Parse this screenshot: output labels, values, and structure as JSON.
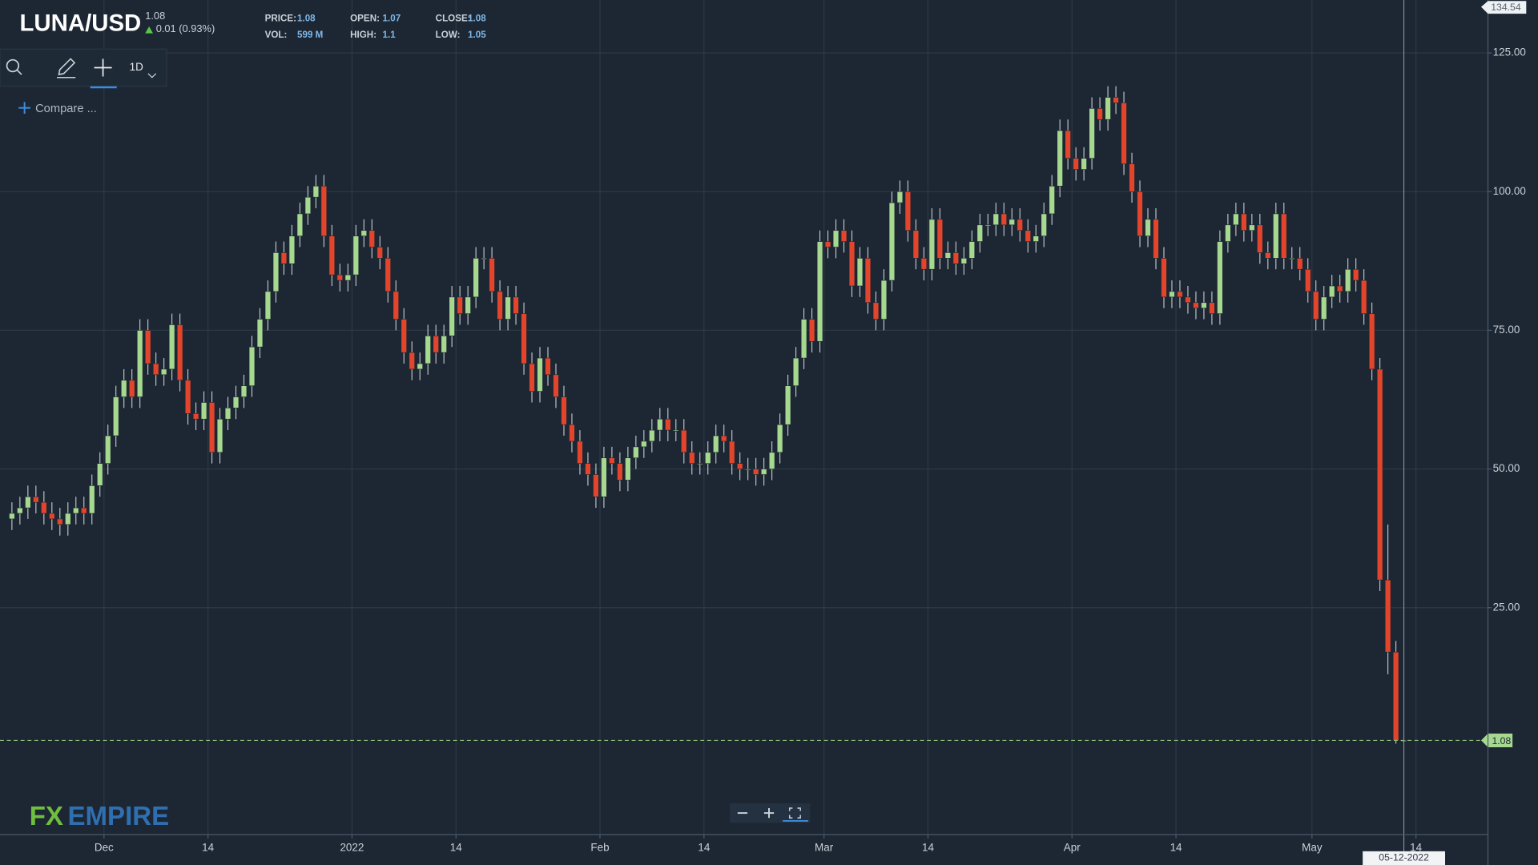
{
  "header": {
    "symbol": "LUNA/USD",
    "price": "1.08",
    "change": "0.01 (0.93%)",
    "stats": [
      {
        "label": "PRICE:",
        "value": "1.08"
      },
      {
        "label": "VOL:",
        "value": "599 M"
      },
      {
        "label": "OPEN:",
        "value": "1.07"
      },
      {
        "label": "HIGH:",
        "value": "1.1"
      },
      {
        "label": "CLOSE:",
        "value": "1.08"
      },
      {
        "label": "LOW:",
        "value": "1.05"
      }
    ]
  },
  "toolbar": {
    "interval": "1D",
    "compare": "Compare ..."
  },
  "logo": {
    "fx": "FX",
    "empire": "EMPIRE"
  },
  "chart_data": {
    "type": "candlestick",
    "crosshair_label": "05-12-2022",
    "up_color": "#a6d88f",
    "down_color": "#e2452b",
    "grid": true,
    "xlim": [
      "2021-11-18",
      "2022-05-23"
    ],
    "xticks": [
      {
        "value": "2021-12-01",
        "label": "Dec"
      },
      {
        "value": "2021-12-14",
        "label": "14"
      },
      {
        "value": "2022-01-01",
        "label": "2022"
      },
      {
        "value": "2022-01-14",
        "label": "14"
      },
      {
        "value": "2022-02-01",
        "label": "Feb"
      },
      {
        "value": "2022-02-14",
        "label": "14"
      },
      {
        "value": "2022-03-01",
        "label": "Mar"
      },
      {
        "value": "2022-03-14",
        "label": "14"
      },
      {
        "value": "2022-04-01",
        "label": "Apr"
      },
      {
        "value": "2022-04-14",
        "label": "14"
      },
      {
        "value": "2022-05-01",
        "label": "May"
      },
      {
        "value": "2022-05-14",
        "label": "14"
      }
    ],
    "ylim": [
      -15.9,
      134.54
    ],
    "yticks": [
      {
        "value": 25,
        "label": "25.00"
      },
      {
        "value": 50,
        "label": "50.00"
      },
      {
        "value": 75,
        "label": "75.00"
      },
      {
        "value": 100,
        "label": "100.00"
      },
      {
        "value": 125,
        "label": "125.00"
      }
    ],
    "x": [
      "2021-11-19",
      "2021-11-20",
      "2021-11-21",
      "2021-11-22",
      "2021-11-23",
      "2021-11-24",
      "2021-11-25",
      "2021-11-26",
      "2021-11-27",
      "2021-11-28",
      "2021-11-29",
      "2021-11-30",
      "2021-12-01",
      "2021-12-02",
      "2021-12-03",
      "2021-12-04",
      "2021-12-05",
      "2021-12-06",
      "2021-12-07",
      "2021-12-08",
      "2021-12-09",
      "2021-12-10",
      "2021-12-11",
      "2021-12-12",
      "2021-12-13",
      "2021-12-14",
      "2021-12-15",
      "2021-12-16",
      "2021-12-17",
      "2021-12-18",
      "2021-12-19",
      "2021-12-20",
      "2021-12-21",
      "2021-12-22",
      "2021-12-23",
      "2021-12-24",
      "2021-12-25",
      "2021-12-26",
      "2021-12-27",
      "2021-12-28",
      "2021-12-29",
      "2021-12-30",
      "2021-12-31",
      "2022-01-01",
      "2022-01-02",
      "2022-01-03",
      "2022-01-04",
      "2022-01-05",
      "2022-01-06",
      "2022-01-07",
      "2022-01-08",
      "2022-01-09",
      "2022-01-10",
      "2022-01-11",
      "2022-01-12",
      "2022-01-13",
      "2022-01-14",
      "2022-01-15",
      "2022-01-16",
      "2022-01-17",
      "2022-01-18",
      "2022-01-19",
      "2022-01-20",
      "2022-01-21",
      "2022-01-22",
      "2022-01-23",
      "2022-01-24",
      "2022-01-25",
      "2022-01-26",
      "2022-01-27",
      "2022-01-28",
      "2022-01-29",
      "2022-01-30",
      "2022-01-31",
      "2022-02-01",
      "2022-02-02",
      "2022-02-03",
      "2022-02-04",
      "2022-02-05",
      "2022-02-06",
      "2022-02-07",
      "2022-02-08",
      "2022-02-09",
      "2022-02-10",
      "2022-02-11",
      "2022-02-12",
      "2022-02-13",
      "2022-02-14",
      "2022-02-15",
      "2022-02-16",
      "2022-02-17",
      "2022-02-18",
      "2022-02-19",
      "2022-02-20",
      "2022-02-21",
      "2022-02-22",
      "2022-02-23",
      "2022-02-24",
      "2022-02-25",
      "2022-02-26",
      "2022-02-27",
      "2022-02-28",
      "2022-03-01",
      "2022-03-02",
      "2022-03-03",
      "2022-03-04",
      "2022-03-05",
      "2022-03-06",
      "2022-03-07",
      "2022-03-08",
      "2022-03-09",
      "2022-03-10",
      "2022-03-11",
      "2022-03-12",
      "2022-03-13",
      "2022-03-14",
      "2022-03-15",
      "2022-03-16",
      "2022-03-17",
      "2022-03-18",
      "2022-03-19",
      "2022-03-20",
      "2022-03-21",
      "2022-03-22",
      "2022-03-23",
      "2022-03-24",
      "2022-03-25",
      "2022-03-26",
      "2022-03-27",
      "2022-03-28",
      "2022-03-29",
      "2022-03-30",
      "2022-03-31",
      "2022-04-01",
      "2022-04-02",
      "2022-04-03",
      "2022-04-04",
      "2022-04-05",
      "2022-04-06",
      "2022-04-07",
      "2022-04-08",
      "2022-04-09",
      "2022-04-10",
      "2022-04-11",
      "2022-04-12",
      "2022-04-13",
      "2022-04-14",
      "2022-04-15",
      "2022-04-16",
      "2022-04-17",
      "2022-04-18",
      "2022-04-19",
      "2022-04-20",
      "2022-04-21",
      "2022-04-22",
      "2022-04-23",
      "2022-04-24",
      "2022-04-25",
      "2022-04-26",
      "2022-04-27",
      "2022-04-28",
      "2022-04-29",
      "2022-04-30",
      "2022-05-01",
      "2022-05-02",
      "2022-05-03",
      "2022-05-04",
      "2022-05-05",
      "2022-05-06",
      "2022-05-07",
      "2022-05-08",
      "2022-05-09",
      "2022-05-10",
      "2022-05-11",
      "2022-05-12"
    ],
    "open": [
      41,
      42,
      43,
      45,
      44,
      42,
      41,
      40,
      42,
      43,
      42,
      47,
      51,
      56,
      63,
      66,
      63,
      75,
      69,
      67,
      68,
      76,
      66,
      60,
      59,
      62,
      53,
      59,
      61,
      63,
      65,
      72,
      77,
      82,
      89,
      87,
      92,
      96,
      99,
      101,
      92,
      85,
      84,
      85,
      92,
      93,
      90,
      88,
      82,
      77,
      71,
      68,
      69,
      74,
      71,
      74,
      81,
      78,
      81,
      88,
      88,
      82,
      77,
      81,
      78,
      69,
      64,
      70,
      67,
      63,
      58,
      55,
      51,
      49,
      45,
      52,
      51,
      48,
      52,
      54,
      55,
      57,
      59,
      57,
      57,
      53,
      51,
      51,
      53,
      56,
      55,
      51,
      50,
      50,
      49,
      50,
      53,
      58,
      65,
      70,
      77,
      73,
      91,
      90,
      93,
      91,
      83,
      88,
      80,
      77,
      84,
      98,
      100,
      93,
      88,
      86,
      95,
      88,
      89,
      87,
      88,
      91,
      94,
      94,
      96,
      94,
      95,
      93,
      91,
      92,
      96,
      101,
      111,
      106,
      104,
      106,
      115,
      113,
      117,
      116,
      105,
      100,
      92,
      95,
      88,
      81,
      82,
      81,
      80,
      79,
      80,
      78,
      91,
      94,
      96,
      93,
      94,
      89,
      88,
      96,
      88,
      88,
      86,
      82,
      77,
      81,
      83,
      82,
      86,
      84,
      78,
      68,
      30,
      17,
      1.07
    ],
    "high": [
      44,
      45,
      47,
      47,
      46,
      44,
      43,
      44,
      45,
      45,
      49,
      53,
      58,
      65,
      68,
      68,
      77,
      77,
      71,
      70,
      78,
      78,
      68,
      62,
      64,
      64,
      61,
      63,
      65,
      67,
      74,
      79,
      84,
      91,
      91,
      94,
      98,
      101,
      103,
      103,
      94,
      87,
      87,
      94,
      95,
      95,
      92,
      90,
      84,
      79,
      73,
      71,
      76,
      76,
      76,
      83,
      83,
      83,
      90,
      90,
      90,
      84,
      83,
      83,
      80,
      71,
      72,
      72,
      69,
      65,
      60,
      57,
      53,
      51,
      54,
      54,
      53,
      54,
      56,
      57,
      59,
      61,
      61,
      59,
      59,
      55,
      53,
      55,
      58,
      58,
      57,
      53,
      52,
      52,
      52,
      55,
      60,
      67,
      72,
      79,
      79,
      93,
      93,
      95,
      95,
      93,
      90,
      90,
      82,
      86,
      100,
      102,
      102,
      95,
      90,
      97,
      97,
      91,
      91,
      90,
      93,
      96,
      96,
      98,
      98,
      97,
      97,
      95,
      94,
      98,
      103,
      113,
      113,
      108,
      108,
      117,
      117,
      119,
      119,
      118,
      107,
      102,
      97,
      97,
      90,
      84,
      84,
      83,
      82,
      82,
      82,
      93,
      96,
      98,
      98,
      96,
      96,
      91,
      98,
      98,
      90,
      90,
      88,
      84,
      83,
      85,
      85,
      88,
      88,
      86,
      80,
      70,
      40,
      19,
      1.1
    ],
    "low": [
      39,
      40,
      41,
      42,
      40,
      39,
      38,
      38,
      40,
      40,
      40,
      45,
      49,
      54,
      61,
      61,
      61,
      67,
      65,
      65,
      66,
      64,
      58,
      57,
      57,
      51,
      51,
      57,
      59,
      61,
      63,
      70,
      75,
      80,
      85,
      85,
      90,
      94,
      97,
      90,
      83,
      82,
      82,
      83,
      90,
      88,
      86,
      80,
      75,
      69,
      66,
      66,
      67,
      69,
      69,
      72,
      76,
      76,
      79,
      86,
      80,
      75,
      75,
      76,
      67,
      62,
      62,
      65,
      61,
      56,
      53,
      49,
      47,
      43,
      43,
      49,
      46,
      46,
      50,
      52,
      53,
      55,
      55,
      55,
      51,
      49,
      49,
      49,
      51,
      53,
      49,
      48,
      48,
      47,
      47,
      48,
      51,
      56,
      63,
      68,
      71,
      71,
      88,
      88,
      89,
      81,
      81,
      78,
      75,
      75,
      82,
      96,
      91,
      86,
      84,
      84,
      86,
      86,
      85,
      85,
      86,
      89,
      92,
      92,
      92,
      92,
      91,
      89,
      89,
      90,
      94,
      99,
      104,
      102,
      102,
      104,
      111,
      111,
      114,
      103,
      98,
      90,
      90,
      86,
      79,
      79,
      79,
      78,
      77,
      77,
      76,
      76,
      89,
      92,
      91,
      91,
      87,
      86,
      86,
      86,
      86,
      84,
      80,
      75,
      75,
      79,
      80,
      80,
      82,
      76,
      66,
      28,
      13,
      0.5,
      1.05
    ],
    "close": [
      42,
      43,
      45,
      44,
      42,
      41,
      40,
      42,
      43,
      42,
      47,
      51,
      56,
      63,
      66,
      63,
      75,
      69,
      67,
      68,
      76,
      66,
      60,
      59,
      62,
      53,
      59,
      61,
      63,
      65,
      72,
      77,
      82,
      89,
      87,
      92,
      96,
      99,
      101,
      92,
      85,
      84,
      85,
      92,
      93,
      90,
      88,
      82,
      77,
      71,
      68,
      69,
      74,
      71,
      74,
      81,
      78,
      81,
      88,
      88,
      82,
      77,
      81,
      78,
      69,
      64,
      70,
      67,
      63,
      58,
      55,
      51,
      49,
      45,
      52,
      51,
      48,
      52,
      54,
      55,
      57,
      59,
      57,
      57,
      53,
      51,
      51,
      53,
      56,
      55,
      51,
      50,
      50,
      49,
      50,
      53,
      58,
      65,
      70,
      77,
      73,
      91,
      90,
      93,
      91,
      83,
      88,
      80,
      77,
      84,
      98,
      100,
      93,
      88,
      86,
      95,
      88,
      89,
      87,
      88,
      91,
      94,
      94,
      96,
      94,
      95,
      93,
      91,
      92,
      96,
      101,
      111,
      106,
      104,
      106,
      115,
      113,
      117,
      116,
      105,
      100,
      92,
      95,
      88,
      81,
      82,
      81,
      80,
      79,
      80,
      78,
      91,
      94,
      96,
      93,
      94,
      89,
      88,
      96,
      88,
      88,
      86,
      82,
      77,
      81,
      83,
      82,
      86,
      84,
      78,
      68,
      30,
      17,
      1.07,
      1.08
    ]
  }
}
